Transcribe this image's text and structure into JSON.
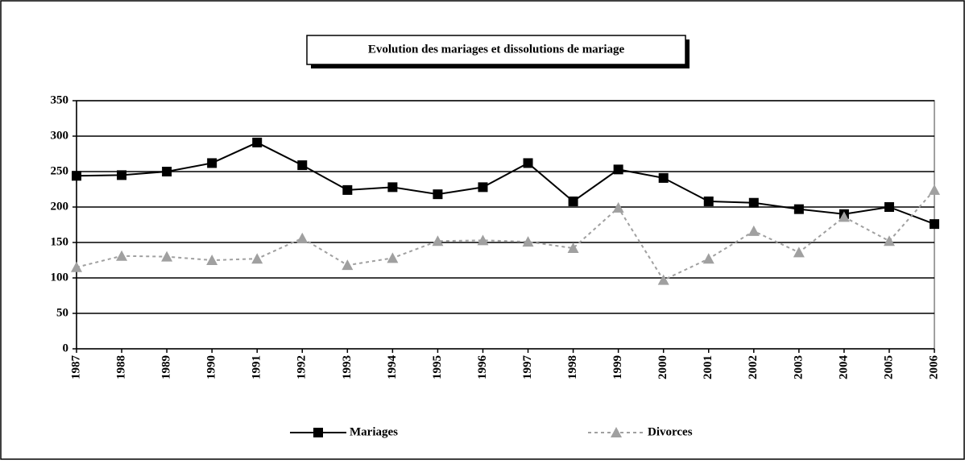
{
  "chart_data": {
    "type": "line",
    "title": "Evolution des mariages et dissolutions de mariage",
    "categories": [
      "1987",
      "1988",
      "1989",
      "1990",
      "1991",
      "1992",
      "1993",
      "1994",
      "1995",
      "1996",
      "1997",
      "1998",
      "1999",
      "2000",
      "2001",
      "2002",
      "2003",
      "2004",
      "2005",
      "2006"
    ],
    "series": [
      {
        "name": "Mariages",
        "color": "#000000",
        "values": [
          244,
          245,
          250,
          262,
          291,
          259,
          224,
          228,
          218,
          228,
          262,
          208,
          253,
          241,
          208,
          206,
          197,
          190,
          200,
          176
        ]
      },
      {
        "name": "Divorces",
        "color": "#a0a0a0",
        "values": [
          115,
          131,
          130,
          125,
          127,
          156,
          118,
          128,
          152,
          153,
          151,
          142,
          199,
          97,
          127,
          166,
          136,
          186,
          152,
          224
        ]
      }
    ],
    "ylim": [
      0,
      350
    ],
    "yticks": [
      0,
      50,
      100,
      150,
      200,
      250,
      300,
      350
    ],
    "grid": true,
    "legend": "bottom"
  }
}
